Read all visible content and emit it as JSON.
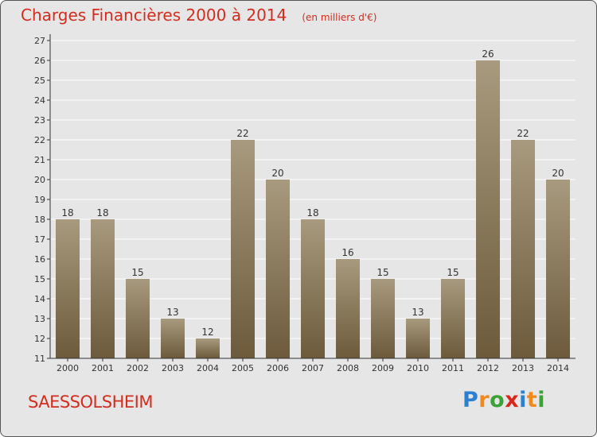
{
  "header": {
    "title": "Charges Financières 2000 à 2014",
    "unit": "(en milliers d'€)"
  },
  "footer": {
    "commune": "SAESSOLSHEIM",
    "logo_letters": [
      "P",
      "r",
      "o",
      "x",
      "i",
      "t",
      "i"
    ],
    "logo_colors": [
      "#2d7fd0",
      "#f08a1c",
      "#3aa335",
      "#d8281d",
      "#2d7fd0",
      "#f08a1c",
      "#3aa335"
    ]
  },
  "colors": {
    "bar_light": "#a89a7e",
    "bar_dark": "#6c5a3b",
    "title_red": "#d22d1e",
    "background": "#e6e6e6"
  },
  "chart_data": {
    "type": "bar",
    "categories": [
      "2000",
      "2001",
      "2002",
      "2003",
      "2004",
      "2005",
      "2006",
      "2007",
      "2008",
      "2009",
      "2010",
      "2011",
      "2012",
      "2013",
      "2014"
    ],
    "values": [
      18,
      18,
      15,
      13,
      12,
      22,
      20,
      18,
      16,
      15,
      13,
      15,
      26,
      22,
      20
    ],
    "data_labels": [
      "18",
      "18",
      "15",
      "13",
      "12",
      "22",
      "20",
      "18",
      "16",
      "15",
      "13",
      "15",
      "26",
      "22",
      "20"
    ],
    "yticks": [
      "11",
      "12",
      "13",
      "14",
      "15",
      "16",
      "17",
      "18",
      "19",
      "20",
      "21",
      "22",
      "23",
      "24",
      "25",
      "26",
      "27"
    ],
    "ylim": [
      11,
      27
    ],
    "grid": true
  }
}
